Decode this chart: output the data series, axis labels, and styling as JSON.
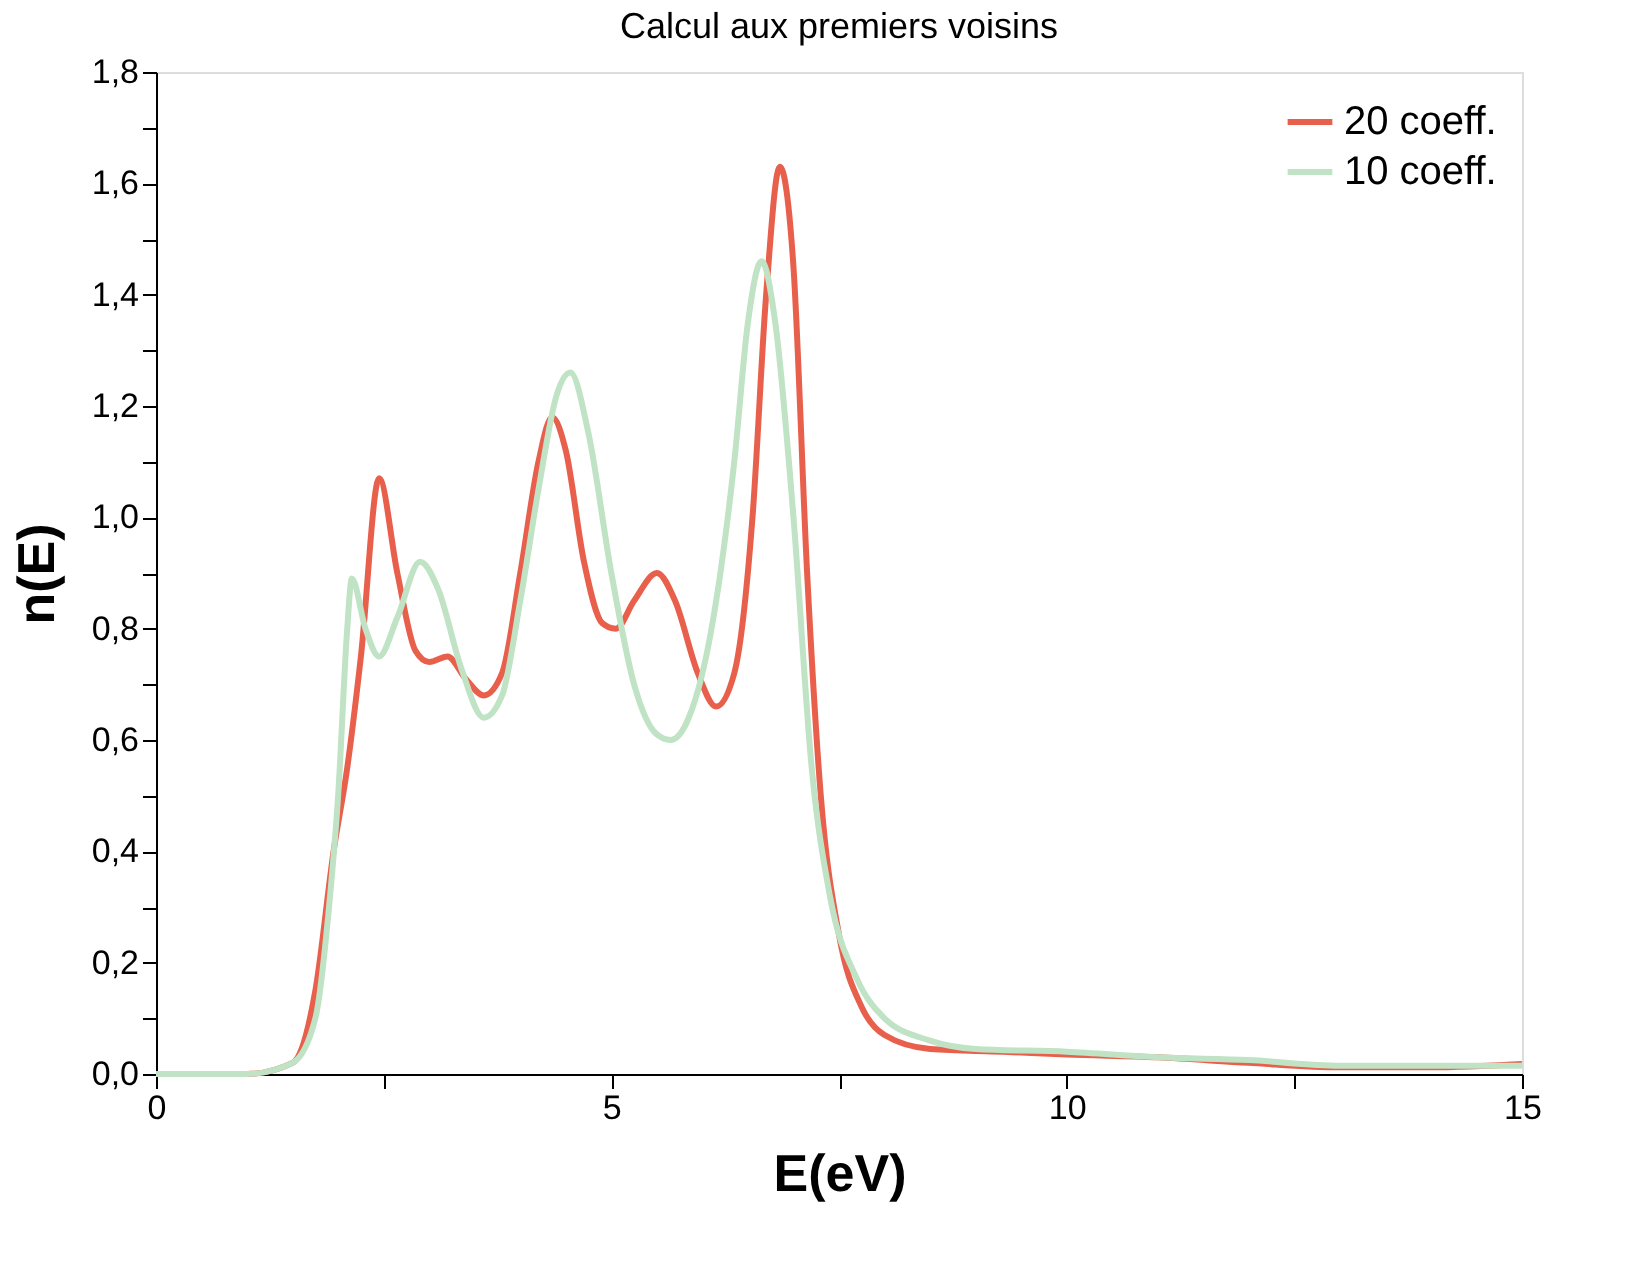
{
  "chart_data": {
    "type": "line",
    "title": "Calcul aux premiers voisins",
    "xlabel": "E(eV)",
    "ylabel": "n(E)",
    "xlim": [
      0,
      15
    ],
    "ylim": [
      0,
      1.8
    ],
    "xticks": [
      0,
      {
        "value": 2.5,
        "label": null
      },
      5,
      {
        "value": 7.5,
        "label": null
      },
      10,
      {
        "value": 12.5,
        "label": null
      },
      15
    ],
    "yticks": [
      {
        "value": 0,
        "label": "0,0"
      },
      {
        "value": 0.1,
        "label": null
      },
      {
        "value": 0.2,
        "label": "0,2"
      },
      {
        "value": 0.3,
        "label": null
      },
      {
        "value": 0.4,
        "label": "0,4"
      },
      {
        "value": 0.5,
        "label": null
      },
      {
        "value": 0.6,
        "label": "0,6"
      },
      {
        "value": 0.7,
        "label": null
      },
      {
        "value": 0.8,
        "label": "0,8"
      },
      {
        "value": 0.9,
        "label": null
      },
      {
        "value": 1.0,
        "label": "1,0"
      },
      {
        "value": 1.1,
        "label": null
      },
      {
        "value": 1.2,
        "label": "1,2"
      },
      {
        "value": 1.3,
        "label": null
      },
      {
        "value": 1.4,
        "label": "1,4"
      },
      {
        "value": 1.5,
        "label": null
      },
      {
        "value": 1.6,
        "label": "1,6"
      },
      {
        "value": 1.7,
        "label": null
      },
      {
        "value": 1.8,
        "label": "1,8"
      }
    ],
    "grid": false,
    "legend": "top right",
    "marker": "none",
    "line_style": "solid",
    "series": [
      {
        "name": "20 coeff.",
        "color": "#e8604c",
        "x": [
          0,
          1,
          1.5,
          1.75,
          1.95,
          2.1,
          2.25,
          2.45,
          2.65,
          2.85,
          3.0,
          3.2,
          3.4,
          3.6,
          3.8,
          4.0,
          4.2,
          4.35,
          4.5,
          4.7,
          4.9,
          5.05,
          5.25,
          5.5,
          5.7,
          5.95,
          6.15,
          6.35,
          6.55,
          6.7,
          6.85,
          7.0,
          7.15,
          7.3,
          7.5,
          7.75,
          8.0,
          8.5,
          9.3,
          10,
          11,
          12,
          13,
          14,
          15
        ],
        "values": [
          0,
          0,
          0.02,
          0.15,
          0.4,
          0.55,
          0.75,
          1.07,
          0.9,
          0.76,
          0.74,
          0.75,
          0.71,
          0.68,
          0.72,
          0.9,
          1.1,
          1.18,
          1.12,
          0.92,
          0.81,
          0.8,
          0.85,
          0.9,
          0.85,
          0.72,
          0.66,
          0.72,
          1.0,
          1.4,
          1.63,
          1.45,
          0.9,
          0.5,
          0.25,
          0.12,
          0.07,
          0.045,
          0.04,
          0.035,
          0.03,
          0.02,
          0.012,
          0.012,
          0.018
        ]
      },
      {
        "name": "10 coeff.",
        "color": "#bfe3c4",
        "x": [
          0,
          1,
          1.5,
          1.75,
          1.9,
          2.0,
          2.1,
          2.15,
          2.3,
          2.45,
          2.65,
          2.9,
          3.1,
          3.35,
          3.6,
          3.8,
          4.0,
          4.2,
          4.4,
          4.55,
          4.75,
          5.0,
          5.25,
          5.5,
          5.65,
          5.85,
          6.1,
          6.35,
          6.5,
          6.65,
          6.8,
          7.0,
          7.2,
          7.4,
          7.7,
          8.0,
          8.5,
          9,
          10,
          11,
          12,
          13,
          14,
          15
        ],
        "values": [
          0,
          0,
          0.02,
          0.1,
          0.3,
          0.5,
          0.8,
          0.89,
          0.8,
          0.75,
          0.82,
          0.92,
          0.87,
          0.73,
          0.64,
          0.68,
          0.85,
          1.05,
          1.22,
          1.26,
          1.15,
          0.9,
          0.7,
          0.61,
          0.6,
          0.64,
          0.8,
          1.1,
          1.35,
          1.46,
          1.35,
          1.0,
          0.55,
          0.32,
          0.17,
          0.1,
          0.06,
          0.045,
          0.04,
          0.03,
          0.025,
          0.015,
          0.015,
          0.015
        ]
      }
    ]
  }
}
